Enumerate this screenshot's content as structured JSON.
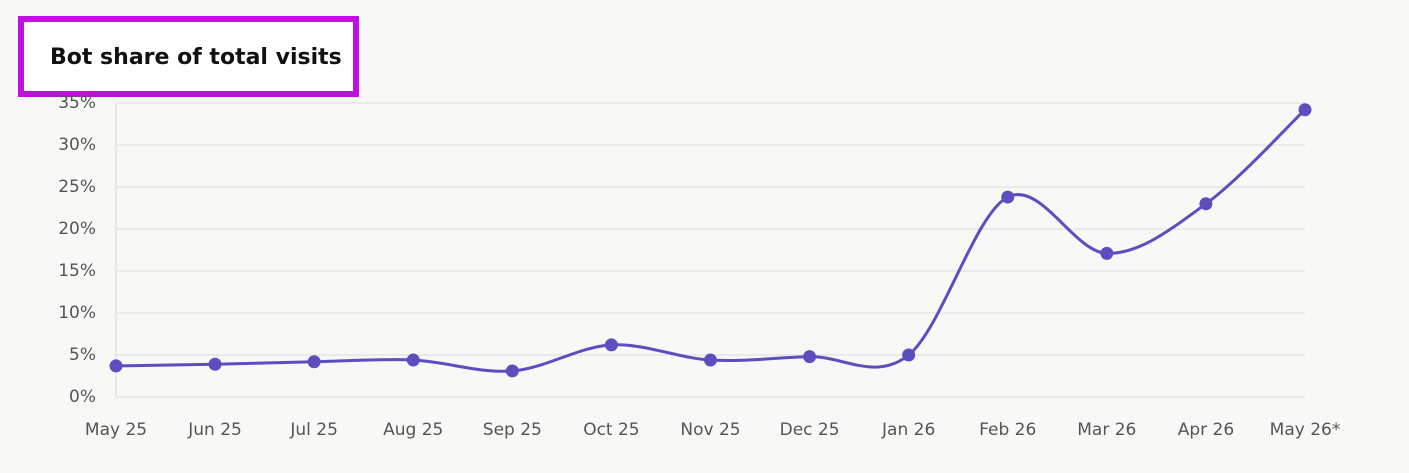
{
  "chart_data": {
    "type": "line",
    "title": "Bot share of total visits",
    "categories": [
      "May 25",
      "Jun 25",
      "Jul 25",
      "Aug 25",
      "Sep 25",
      "Oct 25",
      "Nov 25",
      "Dec 25",
      "Jan 26",
      "Feb 26",
      "Mar 26",
      "Apr 26",
      "May 26*"
    ],
    "values": [
      3.7,
      3.9,
      4.2,
      4.4,
      3.1,
      6.2,
      4.4,
      4.8,
      5.0,
      23.8,
      17.1,
      23.0,
      34.2
    ],
    "color": "#5b4fbf",
    "ylim": [
      0,
      35
    ],
    "yticks": [
      {
        "value": 0,
        "label": "0%"
      },
      {
        "value": 5,
        "label": "5%"
      },
      {
        "value": 10,
        "label": "10%"
      },
      {
        "value": 15,
        "label": "15%"
      },
      {
        "value": 20,
        "label": "20%"
      },
      {
        "value": 25,
        "label": "25%"
      },
      {
        "value": 30,
        "label": "30%"
      },
      {
        "value": 35,
        "label": "35%"
      }
    ],
    "grid": true
  }
}
